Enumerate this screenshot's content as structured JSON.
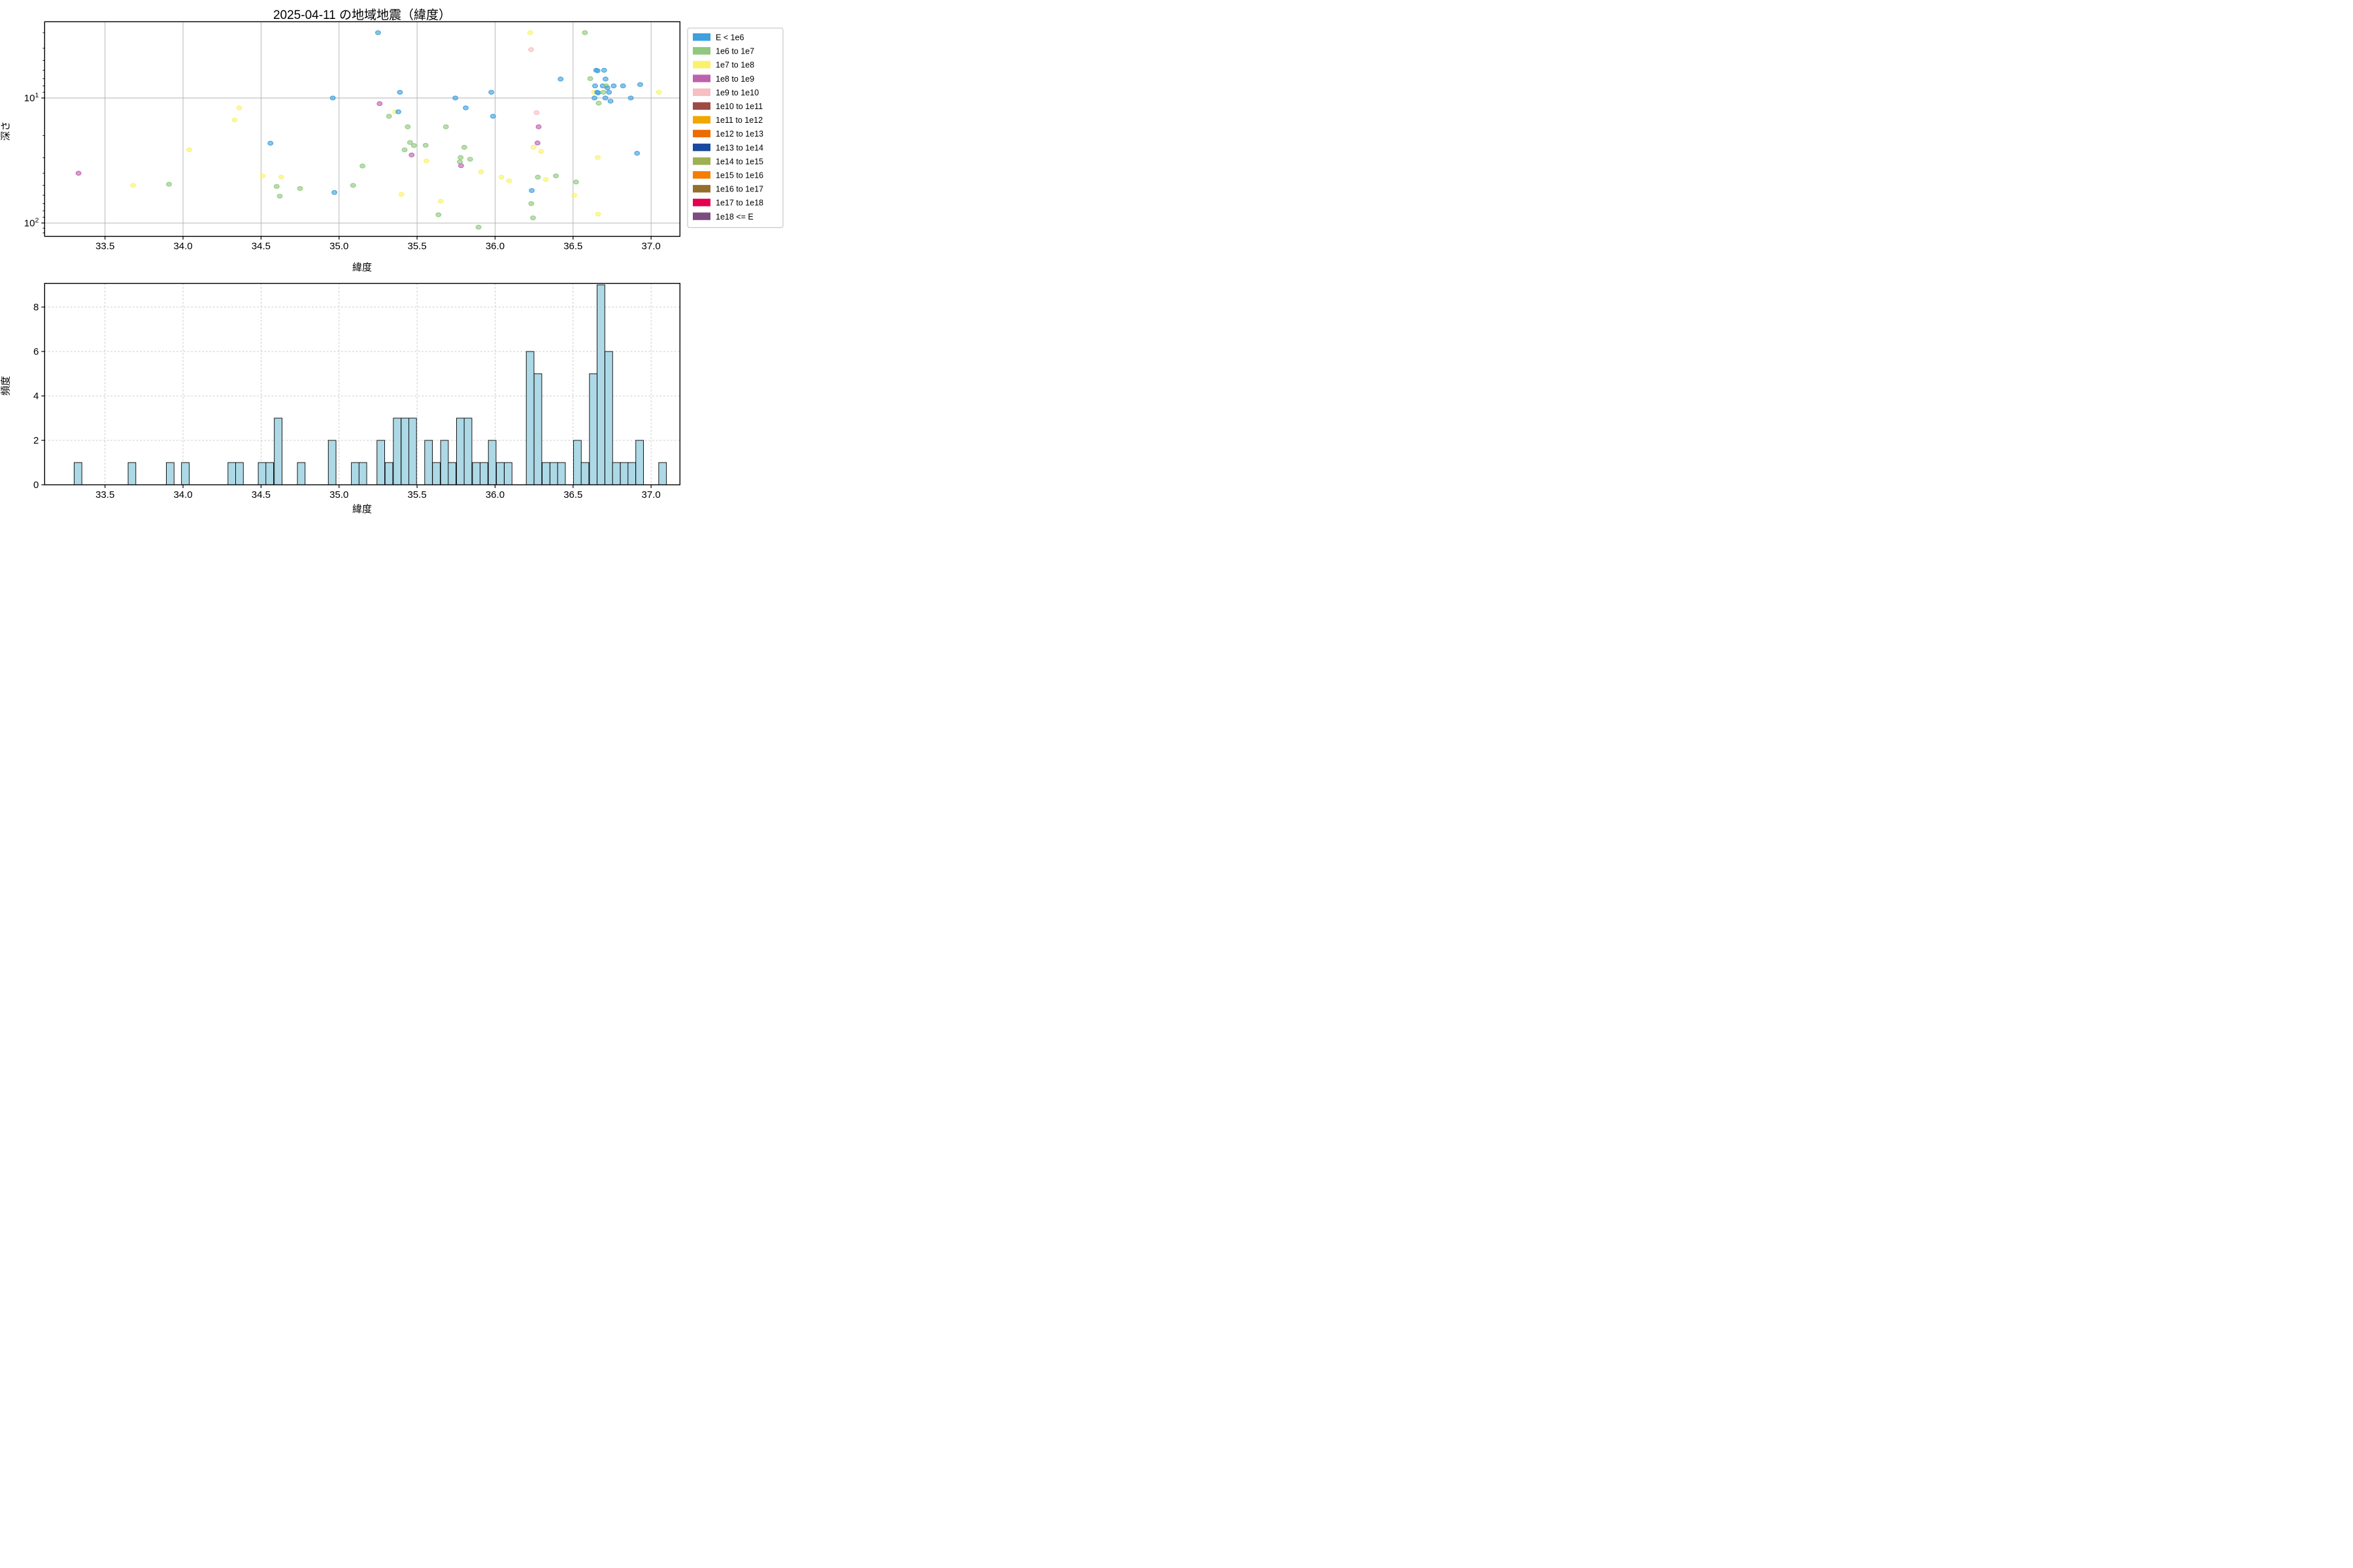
{
  "figure": {
    "title": "2025-04-11 の地域地震（緯度）"
  },
  "scatter": {
    "xlabel": "緯度",
    "ylabel": "深さ",
    "x_ticks": [
      33.5,
      34.0,
      34.5,
      35.0,
      35.5,
      36.0,
      36.5,
      37.0
    ],
    "y_ticks": [
      {
        "label": "10",
        "exp": "1",
        "value": 10
      },
      {
        "label": "10",
        "exp": "2",
        "value": 100
      }
    ],
    "xlim": [
      33.113,
      37.19
    ],
    "ylim_depth": [
      2.455,
      127.0
    ],
    "grid": "solid-major"
  },
  "histogram": {
    "xlabel": "緯度",
    "ylabel": "頻度",
    "x_ticks": [
      33.5,
      34.0,
      34.5,
      35.0,
      35.5,
      36.0,
      36.5,
      37.0
    ],
    "y_ticks": [
      0,
      2,
      4,
      6,
      8
    ],
    "xlim": [
      33.113,
      37.19
    ],
    "ylim": [
      0,
      9.07
    ],
    "bin_width": 0.0493,
    "bar_color": "#ADD8E6",
    "bar_edge_color": "#000000",
    "grid": "dashed"
  },
  "legend": {
    "entries": [
      {
        "label": "E < 1e6",
        "color": "#3FA0DC"
      },
      {
        "label": "1e6 to 1e7",
        "color": "#90C87E"
      },
      {
        "label": "1e7 to 1e8",
        "color": "#FAF26E"
      },
      {
        "label": "1e8 to 1e9",
        "color": "#BF62AE"
      },
      {
        "label": "1e9 to 1e10",
        "color": "#F7BEC3"
      },
      {
        "label": "1e10 to 1e11",
        "color": "#9E4B45"
      },
      {
        "label": "1e11 to 1e12",
        "color": "#F0A800"
      },
      {
        "label": "1e12 to 1e13",
        "color": "#EE6B00"
      },
      {
        "label": "1e13 to 1e14",
        "color": "#1A4A9E"
      },
      {
        "label": "1e14 to 1e15",
        "color": "#9FAF53"
      },
      {
        "label": "1e15 to 1e16",
        "color": "#F57E00"
      },
      {
        "label": "1e16 to 1e17",
        "color": "#946F2B"
      },
      {
        "label": "1e17 to 1e18",
        "color": "#E4004F"
      },
      {
        "label": "1e18 <= E",
        "color": "#7C4B80"
      }
    ]
  },
  "chart_data": [
    {
      "type": "scatter",
      "title": "2025-04-11 の地域地震（緯度）",
      "xlabel": "緯度",
      "ylabel": "深さ",
      "y_scale": "log-inverted",
      "x_range": [
        33.113,
        37.19
      ],
      "y_range_depth_km": [
        2.455,
        127.0
      ],
      "series_key": [
        "latitude",
        "depth_km",
        "energy_bin_index"
      ],
      "points": [
        [
          33.33,
          40,
          3
        ],
        [
          33.68,
          50,
          2
        ],
        [
          33.91,
          49,
          1
        ],
        [
          34.04,
          26,
          2
        ],
        [
          34.33,
          15,
          2
        ],
        [
          34.36,
          12,
          2
        ],
        [
          34.51,
          42,
          2
        ],
        [
          34.56,
          23,
          0
        ],
        [
          34.6,
          51,
          1
        ],
        [
          34.62,
          61,
          1
        ],
        [
          34.63,
          43,
          2
        ],
        [
          34.75,
          53,
          1
        ],
        [
          34.96,
          10,
          0
        ],
        [
          34.97,
          57,
          0
        ],
        [
          35.09,
          50,
          1
        ],
        [
          35.15,
          35,
          1
        ],
        [
          35.25,
          3.0,
          0
        ],
        [
          35.26,
          11.1,
          3
        ],
        [
          35.32,
          14,
          1
        ],
        [
          35.36,
          12.9,
          2
        ],
        [
          35.38,
          12.9,
          0
        ],
        [
          35.39,
          9.0,
          0
        ],
        [
          35.4,
          59,
          2
        ],
        [
          35.42,
          26,
          1
        ],
        [
          35.44,
          17,
          1
        ],
        [
          35.455,
          22.7,
          1
        ],
        [
          35.465,
          28.6,
          3
        ],
        [
          35.48,
          24,
          1
        ],
        [
          35.555,
          23.9,
          1
        ],
        [
          35.56,
          31.9,
          2
        ],
        [
          35.637,
          86,
          1
        ],
        [
          35.652,
          67,
          2
        ],
        [
          35.685,
          17,
          1
        ],
        [
          35.745,
          10,
          0
        ],
        [
          35.774,
          32.5,
          1
        ],
        [
          35.779,
          29.9,
          1
        ],
        [
          35.782,
          34.8,
          3
        ],
        [
          35.803,
          24.8,
          1
        ],
        [
          35.812,
          12,
          0
        ],
        [
          35.84,
          30.9,
          1
        ],
        [
          35.894,
          108,
          1
        ],
        [
          35.91,
          39,
          2
        ],
        [
          35.976,
          9.0,
          0
        ],
        [
          35.987,
          14,
          0
        ],
        [
          36.04,
          43,
          2
        ],
        [
          36.09,
          46,
          2
        ],
        [
          36.225,
          3.0,
          2
        ],
        [
          36.231,
          4.1,
          4
        ],
        [
          36.235,
          55,
          0
        ],
        [
          36.232,
          70,
          1
        ],
        [
          36.243,
          91,
          1
        ],
        [
          36.247,
          24.8,
          2
        ],
        [
          36.266,
          13.1,
          4
        ],
        [
          36.279,
          17,
          3
        ],
        [
          36.272,
          22.9,
          3
        ],
        [
          36.274,
          43,
          1
        ],
        [
          36.295,
          26.8,
          2
        ],
        [
          36.325,
          44.9,
          2
        ],
        [
          36.39,
          42,
          1
        ],
        [
          36.42,
          7.05,
          0
        ],
        [
          36.507,
          60,
          2
        ],
        [
          36.519,
          47,
          1
        ],
        [
          36.576,
          3.0,
          1
        ],
        [
          36.61,
          7.0,
          1
        ],
        [
          36.635,
          9.0,
          2
        ],
        [
          36.637,
          10,
          0
        ],
        [
          36.641,
          8.0,
          0
        ],
        [
          36.648,
          6.0,
          0
        ],
        [
          36.655,
          9.0,
          0
        ],
        [
          36.657,
          6.05,
          0
        ],
        [
          36.66,
          9.1,
          0
        ],
        [
          36.66,
          85,
          2
        ],
        [
          36.658,
          29.9,
          2
        ],
        [
          36.664,
          11,
          1
        ],
        [
          36.69,
          8.0,
          0
        ],
        [
          36.694,
          9.0,
          1
        ],
        [
          36.699,
          6.0,
          0
        ],
        [
          36.707,
          10,
          0
        ],
        [
          36.708,
          7.05,
          0
        ],
        [
          36.712,
          8.0,
          1
        ],
        [
          36.72,
          8.3,
          0
        ],
        [
          36.73,
          9.0,
          0
        ],
        [
          36.74,
          10.6,
          0
        ],
        [
          36.76,
          8.0,
          0
        ],
        [
          36.82,
          8.0,
          0
        ],
        [
          36.87,
          10,
          0
        ],
        [
          36.91,
          27.7,
          0
        ],
        [
          36.93,
          7.8,
          0
        ],
        [
          37.05,
          9.0,
          2
        ]
      ]
    },
    {
      "type": "bar",
      "xlabel": "緯度",
      "ylabel": "頻度",
      "bin_width": 0.0493,
      "ylim": [
        0,
        9.07
      ],
      "bars_key": [
        "bin_left_latitude",
        "count"
      ],
      "bars": [
        [
          33.302,
          1
        ],
        [
          33.648,
          1
        ],
        [
          33.893,
          1
        ],
        [
          33.99,
          1
        ],
        [
          34.288,
          1
        ],
        [
          34.337,
          1
        ],
        [
          34.482,
          1
        ],
        [
          34.531,
          1
        ],
        [
          34.585,
          3
        ],
        [
          34.733,
          1
        ],
        [
          34.931,
          2
        ],
        [
          35.079,
          1
        ],
        [
          35.128,
          1
        ],
        [
          35.243,
          2
        ],
        [
          35.295,
          1
        ],
        [
          35.348,
          3
        ],
        [
          35.398,
          3
        ],
        [
          35.447,
          3
        ],
        [
          35.549,
          2
        ],
        [
          35.599,
          1
        ],
        [
          35.651,
          2
        ],
        [
          35.7,
          1
        ],
        [
          35.753,
          3
        ],
        [
          35.802,
          3
        ],
        [
          35.855,
          1
        ],
        [
          35.904,
          1
        ],
        [
          35.957,
          2
        ],
        [
          36.009,
          1
        ],
        [
          36.059,
          1
        ],
        [
          36.2,
          6
        ],
        [
          36.25,
          5
        ],
        [
          36.302,
          1
        ],
        [
          36.352,
          1
        ],
        [
          36.401,
          1
        ],
        [
          36.503,
          2
        ],
        [
          36.552,
          1
        ],
        [
          36.605,
          5
        ],
        [
          36.654,
          9
        ],
        [
          36.704,
          6
        ],
        [
          36.753,
          1
        ],
        [
          36.803,
          1
        ],
        [
          36.852,
          1
        ],
        [
          36.902,
          2
        ],
        [
          37.049,
          1
        ]
      ]
    }
  ]
}
